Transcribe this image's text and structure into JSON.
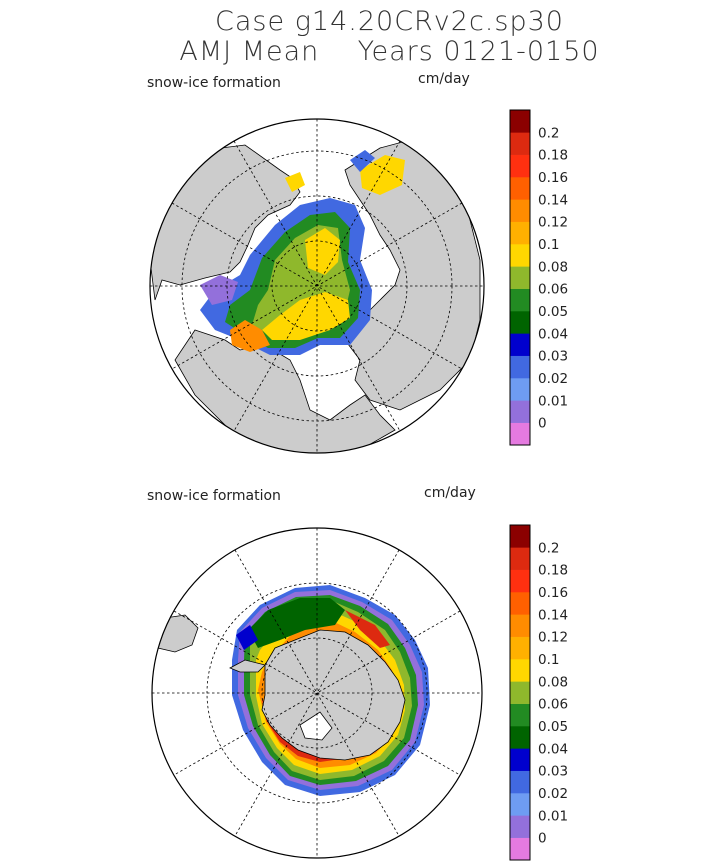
{
  "header": {
    "title_line1": "Case g14.20CRv2c.sp30",
    "title_line2": "AMJ Mean    Years 0121-0150"
  },
  "panels": [
    {
      "name": "north",
      "field_label": "snow-ice formation",
      "units": "cm/day"
    },
    {
      "name": "south",
      "field_label": "snow-ice formation",
      "units": "cm/day"
    }
  ],
  "colorbar": {
    "tick_labels": [
      "0.2",
      "0.18",
      "0.16",
      "0.14",
      "0.12",
      "0.1",
      "0.08",
      "0.06",
      "0.05",
      "0.04",
      "0.03",
      "0.02",
      "0.01",
      "0"
    ],
    "colors": [
      "#e57ae0",
      "#9370db",
      "#6e9cf2",
      "#4169e1",
      "#0000cd",
      "#006400",
      "#228b22",
      "#8fb82c",
      "#ffd700",
      "#ffb000",
      "#ff8c00",
      "#ff6000",
      "#ff3010",
      "#dd2a10",
      "#8b0000"
    ]
  },
  "map_colors": {
    "land": "#cccccc",
    "ocean": "#ffffff"
  }
}
